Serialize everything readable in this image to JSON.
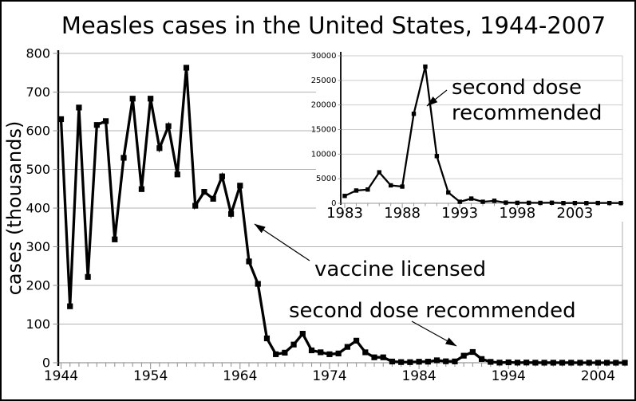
{
  "page": {
    "title": "Measles cases in the United States, 1944-2007"
  },
  "colors": {
    "series": "#000000",
    "axis": "#000000",
    "grid": "#b3b3b3",
    "inset_grid": "#cccccc",
    "tick": "#999999",
    "background": "#ffffff",
    "frame": "#000000",
    "text": "#000000"
  },
  "chart_data": [
    {
      "id": "main",
      "type": "line",
      "title": "Measles cases in the United States, 1944-2007",
      "xlabel": "",
      "ylabel": "cases (thousands)",
      "marker": "square",
      "grid": "horizontal",
      "legend": "none",
      "xlim": [
        1944,
        2007
      ],
      "ylim": [
        0,
        800
      ],
      "xticks": [
        1944,
        1954,
        1964,
        1974,
        1984,
        1994,
        2004
      ],
      "yticks": [
        0,
        100,
        200,
        300,
        400,
        500,
        600,
        700,
        800
      ],
      "x": [
        1944,
        1945,
        1946,
        1947,
        1948,
        1949,
        1950,
        1951,
        1952,
        1953,
        1954,
        1955,
        1956,
        1957,
        1958,
        1959,
        1960,
        1961,
        1962,
        1963,
        1964,
        1965,
        1966,
        1967,
        1968,
        1969,
        1970,
        1971,
        1972,
        1973,
        1974,
        1975,
        1976,
        1977,
        1978,
        1979,
        1980,
        1981,
        1982,
        1983,
        1984,
        1985,
        1986,
        1987,
        1988,
        1989,
        1990,
        1991,
        1992,
        1993,
        1994,
        1995,
        1996,
        1997,
        1998,
        1999,
        2000,
        2001,
        2002,
        2003,
        2004,
        2005,
        2006,
        2007
      ],
      "values": [
        630,
        146,
        660,
        222,
        615,
        625,
        319,
        530,
        683,
        449,
        683,
        555,
        612,
        487,
        763,
        406,
        442,
        424,
        482,
        385,
        458,
        262,
        204,
        63,
        22,
        26,
        47,
        75,
        32,
        27,
        22,
        24,
        41,
        57,
        27,
        14,
        14,
        3.1,
        1.7,
        1.5,
        2.6,
        2.8,
        6.3,
        3.7,
        3.4,
        18.2,
        27.8,
        9.6,
        2.2,
        0.3,
        1,
        0.3,
        0.5,
        0.14,
        0.1,
        0.1,
        0.09,
        0.12,
        0.04,
        0.06,
        0.04,
        0.07,
        0.05,
        0.04
      ],
      "annotations": [
        {
          "text": "vaccine licensed",
          "target_year": 1964.5
        },
        {
          "text": "second dose recommended",
          "target_year": 1989
        }
      ]
    },
    {
      "id": "inset",
      "type": "line",
      "title": "",
      "xlabel": "",
      "ylabel": "",
      "marker": "square",
      "grid": "horizontal",
      "legend": "none",
      "xlim": [
        1983,
        2007
      ],
      "ylim": [
        0,
        30000
      ],
      "xticks": [
        1983,
        1988,
        1993,
        1998,
        2003
      ],
      "yticks": [
        0,
        5000,
        10000,
        15000,
        20000,
        25000,
        30000
      ],
      "x": [
        1983,
        1984,
        1985,
        1986,
        1987,
        1988,
        1989,
        1990,
        1991,
        1992,
        1993,
        1994,
        1995,
        1996,
        1997,
        1998,
        1999,
        2000,
        2001,
        2002,
        2003,
        2004,
        2005,
        2006,
        2007
      ],
      "values": [
        1500,
        2600,
        2800,
        6300,
        3650,
        3400,
        18200,
        27800,
        9600,
        2200,
        310,
        960,
        310,
        510,
        140,
        100,
        100,
        86,
        116,
        44,
        56,
        37,
        66,
        55,
        43
      ],
      "annotations": [
        {
          "text": "second dose recommended",
          "lines": [
            "second dose",
            "recommended"
          ],
          "target_year": 1989
        }
      ]
    }
  ]
}
